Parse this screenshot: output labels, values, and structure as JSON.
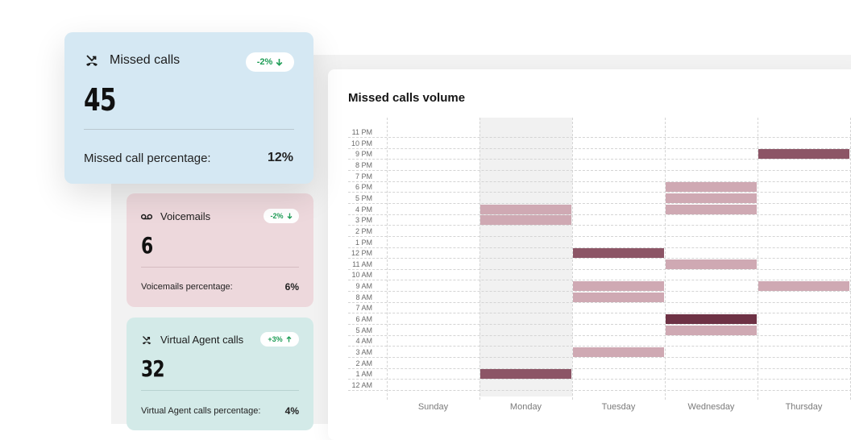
{
  "cards": {
    "missed": {
      "title": "Missed calls",
      "value": "45",
      "badge": "-2%",
      "pct_label": "Missed call percentage:",
      "pct_value": "12%"
    },
    "voicemail": {
      "title": "Voicemails",
      "value": "6",
      "badge": "-2%",
      "pct_label": "Voicemails percentage:",
      "pct_value": "6%"
    },
    "virtual": {
      "title": "Virtual Agent calls",
      "value": "32",
      "badge": "+3%",
      "pct_label": "Virtual Agent calls percentage:",
      "pct_value": "4%"
    }
  },
  "colors": {
    "missed_card": "#d5e8f3",
    "voicemail_card": "#edd8dc",
    "virtual_card": "#d3eae8",
    "badge_text": "#1f9d57",
    "bar_light": "#cfa9b3",
    "bar_medium": "#8c5566",
    "bar_dark": "#6e3245"
  },
  "chart_data": {
    "type": "heatmap",
    "title": "Missed calls volume",
    "hours": [
      "11 PM",
      "10 PM",
      "9 PM",
      "8 PM",
      "7 PM",
      "6 PM",
      "5 PM",
      "4 PM",
      "3 PM",
      "2 PM",
      "1 PM",
      "12 PM",
      "11 AM",
      "10 AM",
      "9 AM",
      "8 AM",
      "7 AM",
      "6 AM",
      "5 AM",
      "4 AM",
      "3 AM",
      "2 AM",
      "1 AM",
      "12 AM"
    ],
    "days": [
      "Sunday",
      "Monday",
      "Tuesday",
      "Wednesday",
      "Thursday"
    ],
    "highlighted_day": "Monday",
    "cells": [
      {
        "day": "Monday",
        "hour": "4 PM",
        "level": "light"
      },
      {
        "day": "Monday",
        "hour": "3 PM",
        "level": "light"
      },
      {
        "day": "Monday",
        "hour": "1 AM",
        "level": "medium"
      },
      {
        "day": "Tuesday",
        "hour": "12 PM",
        "level": "medium"
      },
      {
        "day": "Tuesday",
        "hour": "9 AM",
        "level": "light"
      },
      {
        "day": "Tuesday",
        "hour": "8 AM",
        "level": "light"
      },
      {
        "day": "Tuesday",
        "hour": "3 AM",
        "level": "light"
      },
      {
        "day": "Wednesday",
        "hour": "6 PM",
        "level": "light"
      },
      {
        "day": "Wednesday",
        "hour": "5 PM",
        "level": "light"
      },
      {
        "day": "Wednesday",
        "hour": "4 PM",
        "level": "light"
      },
      {
        "day": "Wednesday",
        "hour": "11 AM",
        "level": "light"
      },
      {
        "day": "Wednesday",
        "hour": "6 AM",
        "level": "dark"
      },
      {
        "day": "Wednesday",
        "hour": "5 AM",
        "level": "light"
      },
      {
        "day": "Thursday",
        "hour": "9 PM",
        "level": "medium"
      },
      {
        "day": "Thursday",
        "hour": "9 AM",
        "level": "light"
      }
    ]
  }
}
